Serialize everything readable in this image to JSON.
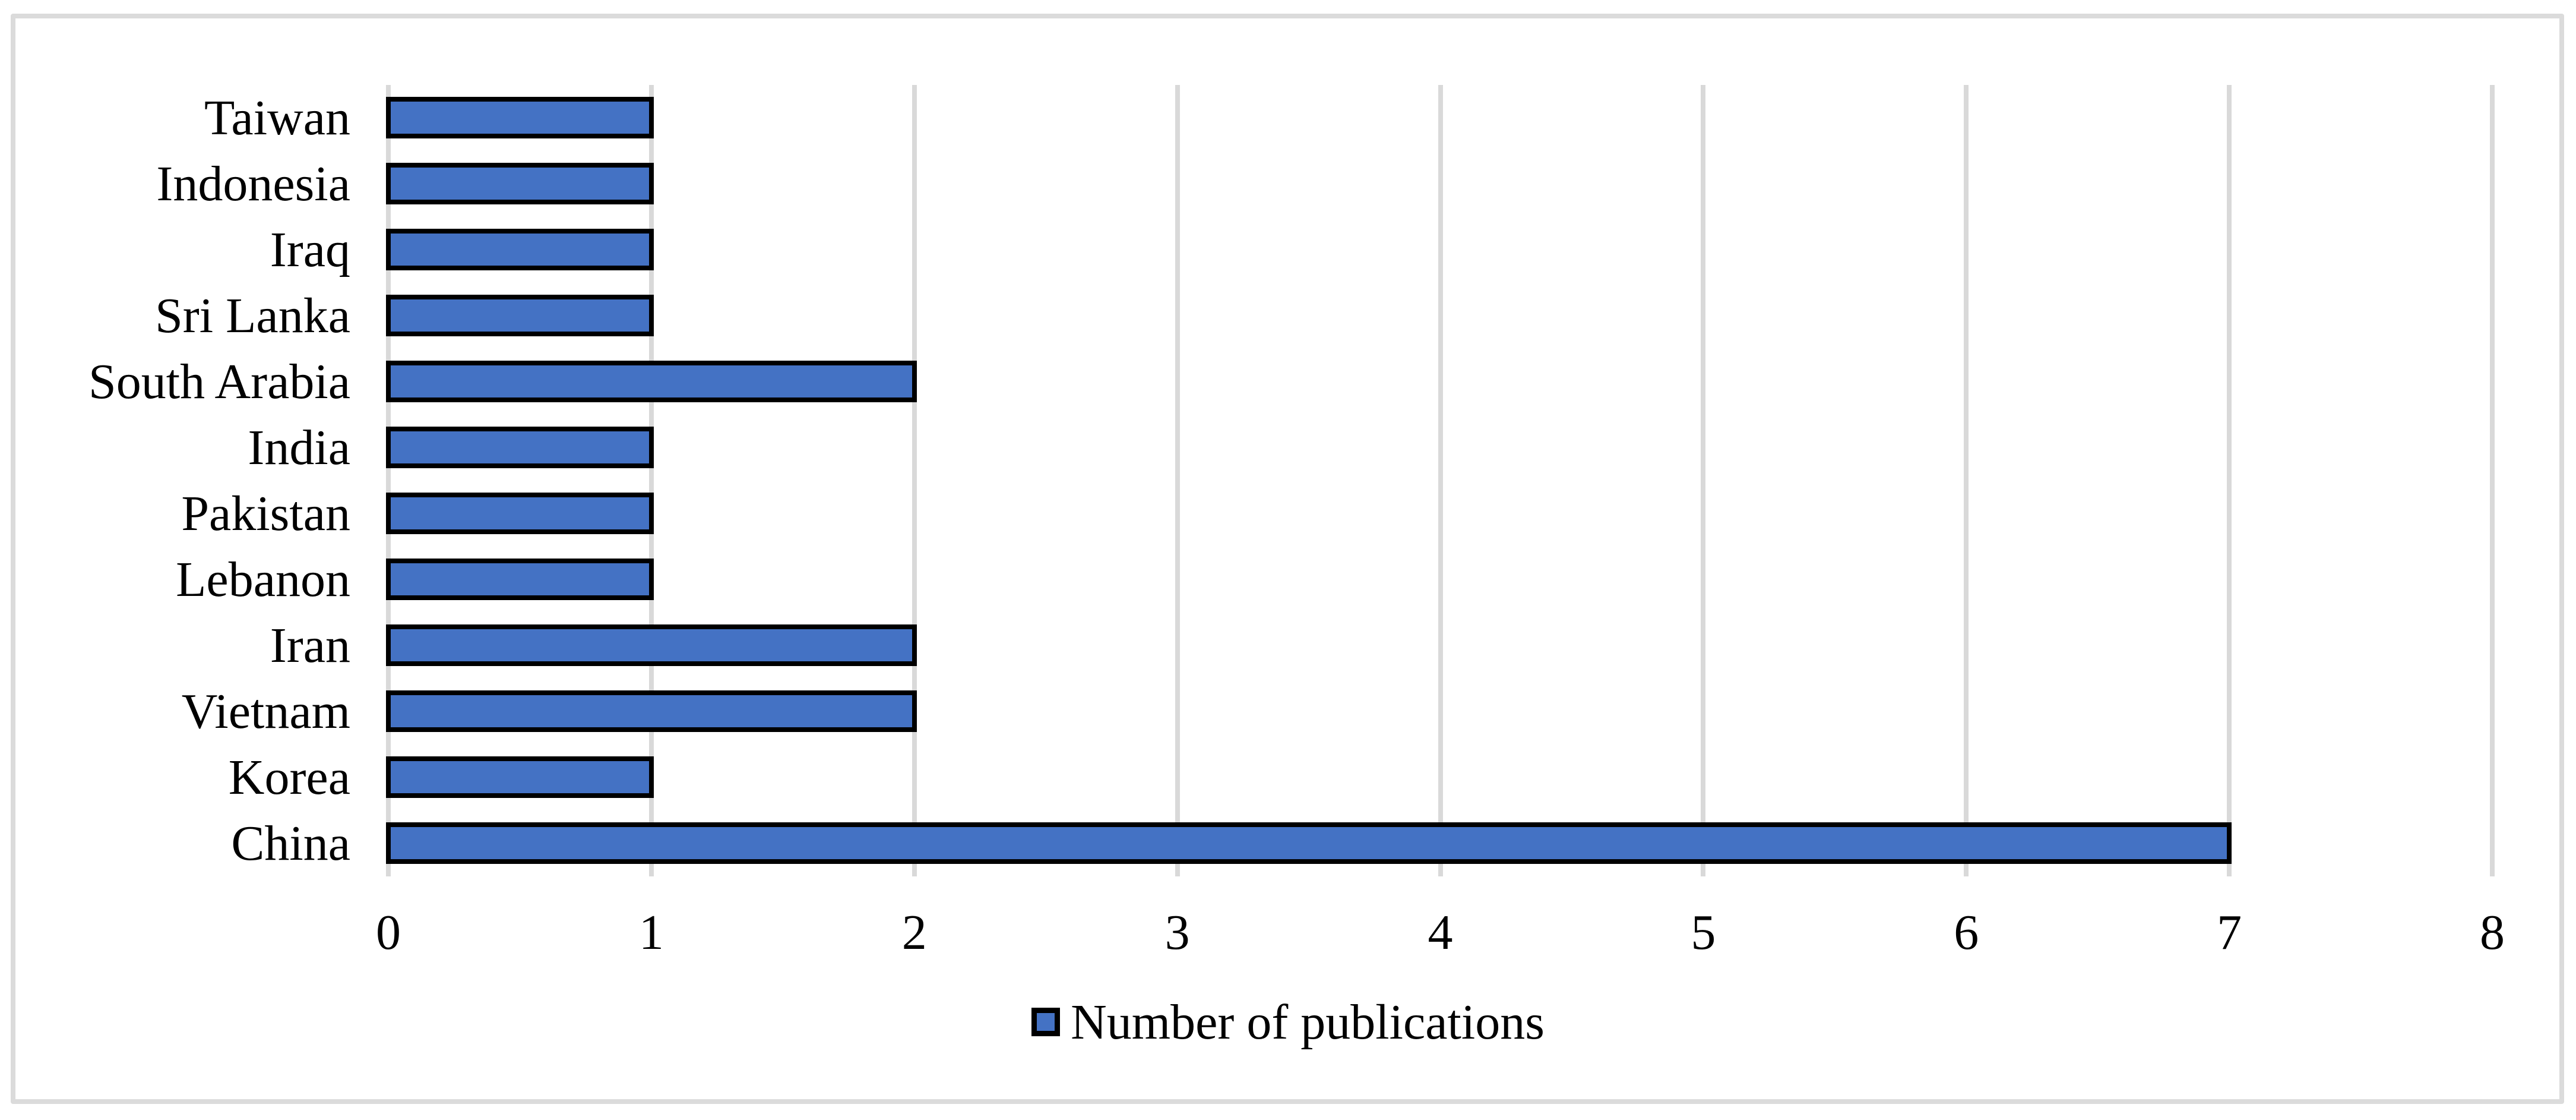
{
  "chart_data": {
    "type": "bar",
    "orientation": "horizontal",
    "title": "",
    "categories": [
      "Taiwan",
      "Indonesia",
      "Iraq",
      "Sri Lanka",
      "South Arabia",
      "India",
      "Pakistan",
      "Lebanon",
      "Iran",
      "Vietnam",
      "Korea",
      "China"
    ],
    "series": [
      {
        "name": "Number of publications",
        "values": [
          1,
          1,
          1,
          1,
          2,
          1,
          1,
          1,
          2,
          2,
          1,
          7
        ]
      }
    ],
    "xlabel": "",
    "ylabel": "",
    "xlim": [
      0,
      8
    ],
    "x_ticks": [
      "0",
      "1",
      "2",
      "3",
      "4",
      "5",
      "6",
      "7",
      "8"
    ],
    "grid": true,
    "legend_position": "bottom-center",
    "colors": {
      "bar_fill": "#4472C4",
      "bar_border": "#000000",
      "gridline": "#D9D9D9",
      "frame_border": "#DBDBDB",
      "text": "#000000",
      "background": "#FFFFFF"
    }
  },
  "legend": {
    "label": "Number of publications"
  }
}
